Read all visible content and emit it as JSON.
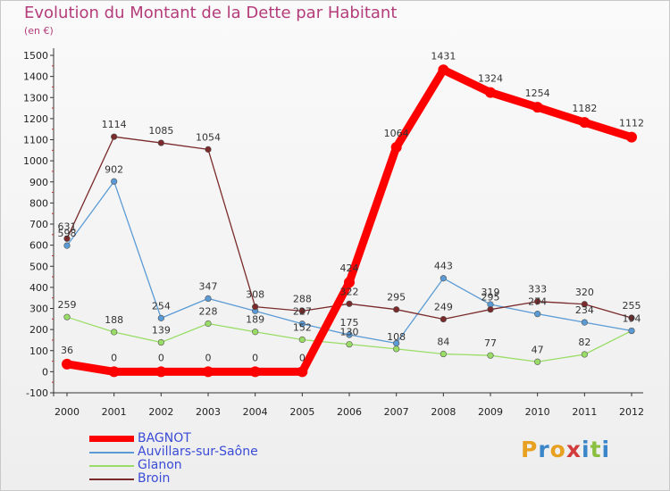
{
  "title": "Evolution du Montant de la Dette par Habitant",
  "subtitle": "(en €)",
  "logo": {
    "text": "Proxiti",
    "colors": [
      "#e8a020",
      "#3a86c8",
      "#e8a020",
      "#d23c3c",
      "#3a86c8",
      "#8ac040",
      "#3a86c8"
    ]
  },
  "chart_data": {
    "type": "line",
    "title": "Evolution du Montant de la Dette par Habitant",
    "subtitle": "(en €)",
    "x": [
      "2000",
      "2001",
      "2002",
      "2003",
      "2004",
      "2005",
      "2006",
      "2007",
      "2008",
      "2009",
      "2010",
      "2011",
      "2012"
    ],
    "ylim": [
      -100,
      1500
    ],
    "yticks": [
      -100,
      0,
      100,
      200,
      300,
      400,
      500,
      600,
      700,
      800,
      900,
      1000,
      1100,
      1200,
      1300,
      1400,
      1500
    ],
    "grid": false,
    "legend": "bottom-left",
    "series": [
      {
        "name": "BAGNOT",
        "color": "#ff0000",
        "values": [
          36,
          0,
          0,
          0,
          0,
          0,
          424,
          1064,
          1431,
          1324,
          1254,
          1182,
          1112
        ],
        "labels": [
          "36",
          "0",
          "0",
          "0",
          "0",
          "0",
          "424",
          "1064",
          "1431",
          "1324",
          "1254",
          "1182",
          "1112"
        ]
      },
      {
        "name": "Auvillars-sur-Saône",
        "color": "#5b9bd5",
        "values": [
          598,
          902,
          254,
          347,
          288,
          227,
          175,
          135,
          443,
          319,
          274,
          234,
          194
        ],
        "labels": [
          "598",
          "902",
          "254",
          "347",
          "",
          "227",
          "175",
          "",
          "443",
          "319",
          "274",
          "234",
          "194"
        ]
      },
      {
        "name": "Glanon",
        "color": "#99dd66",
        "values": [
          259,
          188,
          139,
          228,
          189,
          152,
          130,
          108,
          84,
          77,
          47,
          82,
          194
        ],
        "labels": [
          "259",
          "188",
          "139",
          "228",
          "189",
          "152",
          "130",
          "108",
          "84",
          "77",
          "47",
          "82",
          ""
        ]
      },
      {
        "name": "Broin",
        "color": "#7a2a2a",
        "values": [
          631,
          1114,
          1085,
          1054,
          308,
          288,
          322,
          295,
          249,
          295,
          333,
          320,
          255
        ],
        "labels": [
          "631",
          "1114",
          "1085",
          "1054",
          "308",
          "288",
          "322",
          "295",
          "249",
          "295",
          "333",
          "320",
          "255"
        ]
      }
    ]
  }
}
